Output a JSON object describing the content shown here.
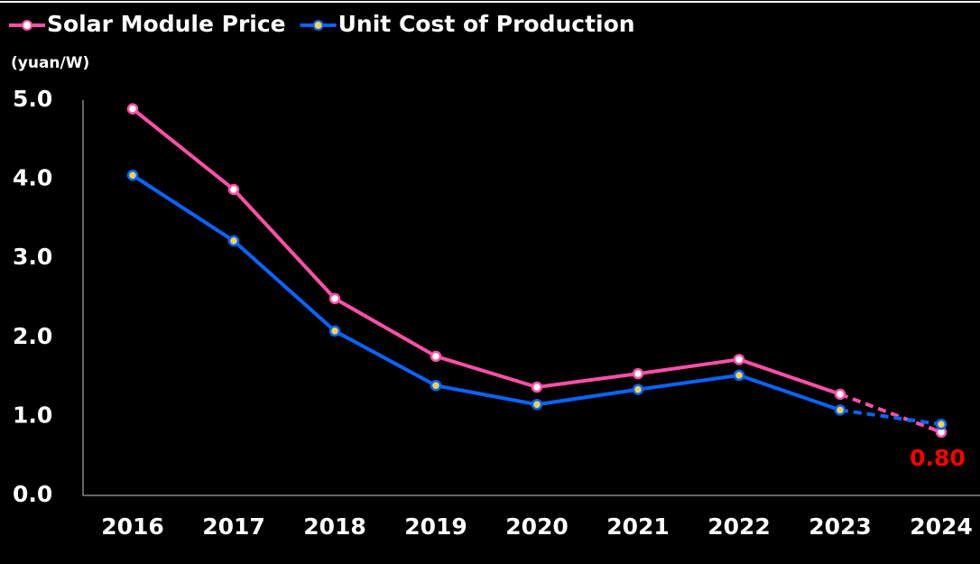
{
  "chart_data": {
    "type": "line",
    "y_label": "(yuan/W)",
    "categories": [
      "2016",
      "2017",
      "2018",
      "2019",
      "2020",
      "2021",
      "2022",
      "2023",
      "2024"
    ],
    "series": [
      {
        "name": "Solar Module Price",
        "color": "#ff4fa8",
        "marker_fill": "#ffffff",
        "values": [
          4.89,
          3.87,
          2.49,
          1.76,
          1.37,
          1.54,
          1.72,
          1.28,
          0.8
        ],
        "value_labels": [
          null,
          null,
          null,
          null,
          null,
          null,
          null,
          null,
          "0.80"
        ],
        "value_label_color": "#ff0000"
      },
      {
        "name": "Unit Cost of Production",
        "color": "#0a64ff",
        "marker_fill": "#f2d44a",
        "values": [
          4.05,
          3.22,
          2.08,
          1.39,
          1.15,
          1.34,
          1.52,
          1.08,
          0.9
        ]
      }
    ],
    "dashed_from": 7,
    "ylim": [
      0,
      5
    ],
    "yticks": [
      {
        "value": 0,
        "label": "0.0"
      },
      {
        "value": 1,
        "label": "1.0"
      },
      {
        "value": 2,
        "label": "2.0"
      },
      {
        "value": 3,
        "label": "3.0"
      },
      {
        "value": 4,
        "label": "4.0"
      },
      {
        "value": 5,
        "label": "5.0"
      }
    ],
    "grid": false,
    "legend": "top-left"
  }
}
